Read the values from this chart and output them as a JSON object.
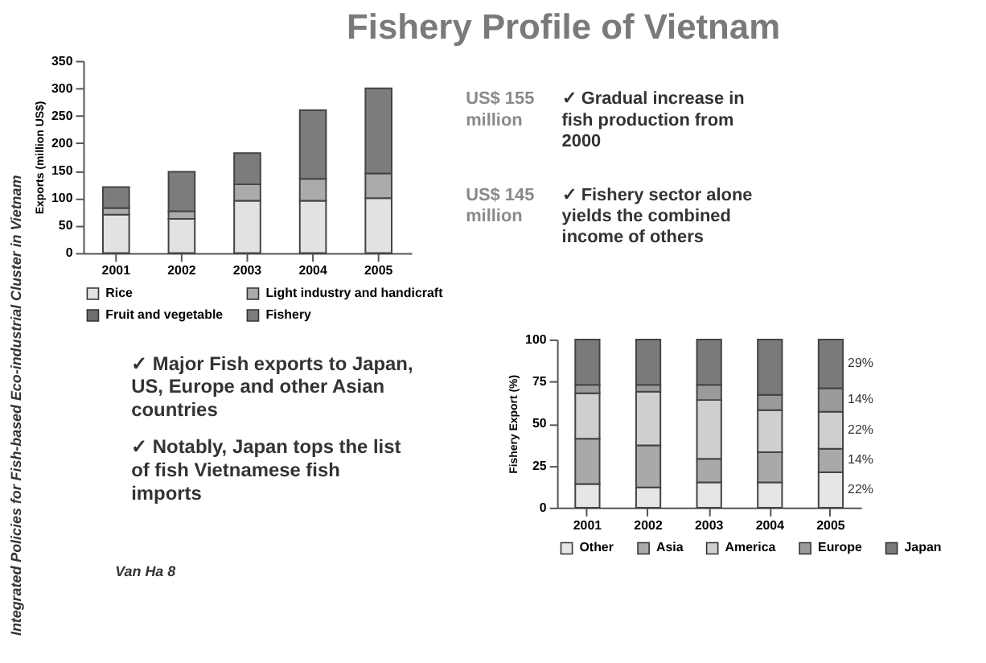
{
  "chart_data": [
    {
      "type": "bar",
      "title": "Fishery Profile of Vietnam",
      "stacked": true,
      "ylabel": "Exports (million US$)",
      "categories": [
        "2001",
        "2002",
        "2003",
        "2004",
        "2005"
      ],
      "series": [
        {
          "name": "Rice",
          "color": "#e2e2e2",
          "values": [
            70,
            62,
            95,
            95,
            100
          ]
        },
        {
          "name": "Light industry and handicraft",
          "color": "#ababab",
          "values": [
            12,
            14,
            30,
            40,
            45
          ]
        },
        {
          "name": "Fruit and vegetable",
          "color": "#6e6e6e",
          "values": [
            null,
            null,
            null,
            null,
            null
          ]
        },
        {
          "name": "Fishery",
          "color": "#7c7c7c",
          "values": [
            38,
            72,
            57,
            125,
            155
          ]
        }
      ],
      "ylim": [
        0,
        350
      ],
      "yticks": [
        0,
        50,
        100,
        150,
        200,
        250,
        300,
        350
      ],
      "legend": "bottom",
      "annotations": [
        "US$ 155 million",
        "US$ 145 million",
        "✓ Gradual increase in fish production from 2000",
        "✓ Fishery sector alone yields the combined income of others",
        "Integrated Policies for Fish-based Eco-industrial Cluster in Vietnam",
        "Van Ha   8"
      ]
    },
    {
      "type": "bar",
      "stacked": true,
      "ylabel": "Fishery Export (%)",
      "categories": [
        "2001",
        "2002",
        "2003",
        "2004",
        "2005"
      ],
      "series": [
        {
          "name": "Other",
          "color": "#e6e6e6",
          "values": [
            14,
            12,
            15,
            15,
            21
          ]
        },
        {
          "name": "Asia",
          "color": "#a9a9a9",
          "values": [
            27,
            25,
            14,
            18,
            14
          ]
        },
        {
          "name": "America",
          "color": "#cfcfcf",
          "values": [
            27,
            32,
            35,
            25,
            22
          ]
        },
        {
          "name": "Europe",
          "color": "#9a9a9a",
          "values": [
            5,
            4,
            9,
            9,
            14
          ]
        },
        {
          "name": "Japan",
          "color": "#7a7a7a",
          "values": [
            27,
            27,
            27,
            33,
            29
          ]
        }
      ],
      "ylim": [
        0,
        100
      ],
      "yticks": [
        0,
        25,
        50,
        75,
        100
      ],
      "legend": "bottom",
      "annotations": [
        "✓ Major Fish exports to Japan, US, Europe and other Asian countries",
        "✓ Notably, Japan tops the list of fish Vietnamese fish imports",
        "22%",
        "14%",
        "22%",
        "14%",
        "29%"
      ]
    }
  ]
}
